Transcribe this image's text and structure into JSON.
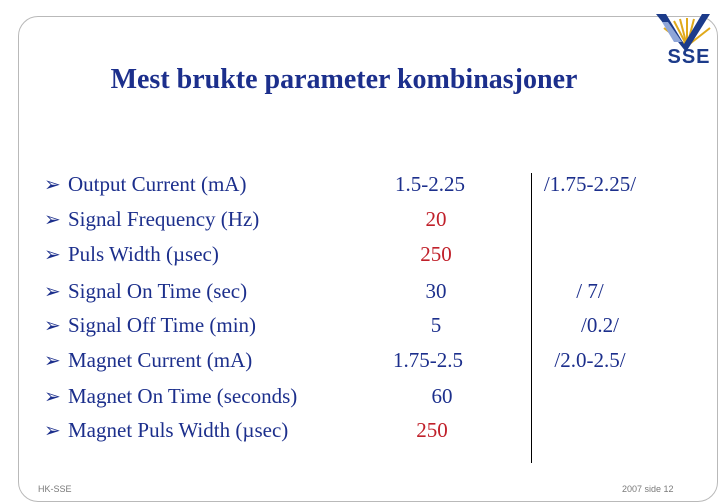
{
  "slide": {
    "title": "Mest brukte parameter kombinasjoner",
    "logo_text": "SSE",
    "footer_left": "HK-SSE",
    "footer_right": "2007 side 12"
  },
  "rows": [
    {
      "label": "Output Current (mA)",
      "value1": "1.5-2.25",
      "value2": "/1.75-2.25/",
      "value1_color": "#1c2f8c"
    },
    {
      "label": "Signal Frequency (Hz)",
      "value1": "20",
      "value2": "",
      "value1_color": "#c0202a"
    },
    {
      "label": "Puls Width (µsec)",
      "value1": "250",
      "value2": "",
      "value1_color": "#c0202a"
    },
    {
      "label": "Signal On Time (sec)",
      "value1": "30",
      "value2": "/ 7/",
      "value1_color": "#1c2f8c"
    },
    {
      "label": "Signal Off Time (min)",
      "value1": "5",
      "value2": "/0.2/",
      "value1_color": "#1c2f8c"
    },
    {
      "label": "Magnet Current (mA)",
      "value1": "1.75-2.5",
      "value2": "/2.0-2.5/",
      "value1_color": "#1c2f8c"
    },
    {
      "label": "Magnet On Time (seconds)",
      "value1": "60",
      "value2": "",
      "value1_color": "#1c2f8c"
    },
    {
      "label": "Magnet Puls Width (µsec)",
      "value1": "250",
      "value2": "",
      "value1_color": "#c0202a"
    }
  ],
  "icons": {
    "bullet": "arrow-bullet-icon",
    "logo": "sun-logo-icon"
  }
}
